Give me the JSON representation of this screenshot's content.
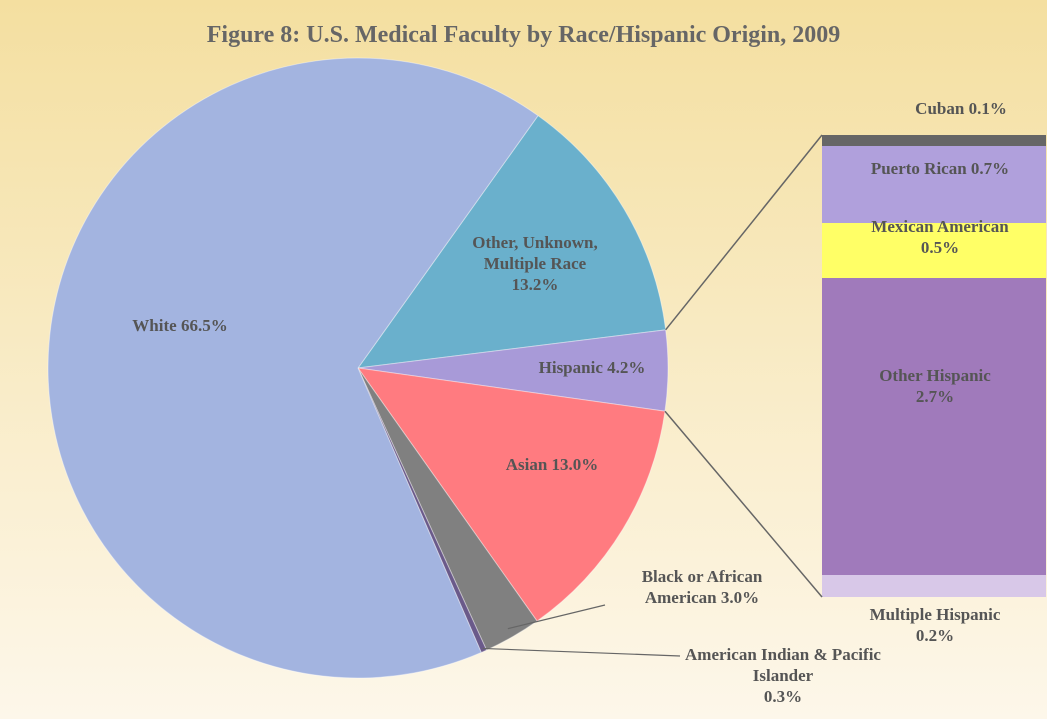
{
  "chart_data": [
    {
      "type": "pie",
      "title": "Figure 8: U.S. Medical Faculty by Race/Hispanic Origin, 2009",
      "categories": [
        "Other, Unknown, Multiple Race",
        "Hispanic",
        "Asian",
        "Black or African American",
        "American Indian & Pacific Islander",
        "White"
      ],
      "values": [
        13.2,
        4.2,
        13.0,
        3.0,
        0.3,
        66.5
      ],
      "value_labels": [
        "13.2%",
        "4.2%",
        "13.0%",
        "3.0%",
        "0.3%",
        "66.5%"
      ],
      "colors": [
        "#6ab0cc",
        "#a89ad8",
        "#ff7b80",
        "#808080",
        "#6a5a8a",
        "#a3b4e0"
      ]
    },
    {
      "type": "bar",
      "categories": [
        "Cuban",
        "Puerto Rican",
        "Mexican American",
        "Other Hispanic",
        "Multiple Hispanic"
      ],
      "values": [
        0.1,
        0.7,
        0.5,
        2.7,
        0.2
      ],
      "value_labels": [
        "0.1%",
        "0.7%",
        "0.5%",
        "2.7%",
        "0.2%"
      ],
      "colors": [
        "#666666",
        "#b0a0dc",
        "#ffff66",
        "#a07abb",
        "#d8c8e8"
      ]
    }
  ]
}
